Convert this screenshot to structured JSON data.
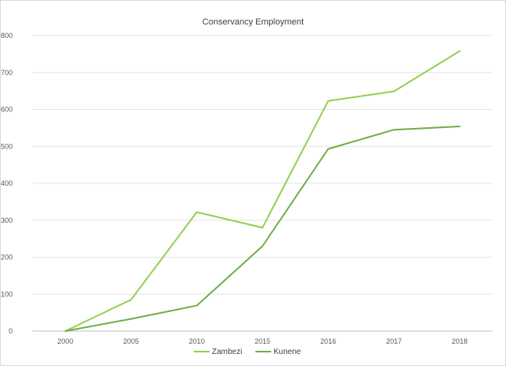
{
  "chart_data": {
    "type": "line",
    "title": "Conservancy Employment",
    "xlabel": "",
    "ylabel": "",
    "categories": [
      "2000",
      "2005",
      "2010",
      "2015",
      "2016",
      "2017",
      "2018"
    ],
    "ylim": [
      0,
      800
    ],
    "yticks": [
      0,
      100,
      200,
      300,
      400,
      500,
      600,
      700,
      800
    ],
    "grid": true,
    "legend_position": "bottom",
    "series": [
      {
        "name": "Zambezi",
        "color": "#92d050",
        "values": [
          0,
          85,
          322,
          280,
          623,
          649,
          758
        ]
      },
      {
        "name": "Kunene",
        "color": "#70ad47",
        "values": [
          0,
          33,
          69,
          230,
          493,
          545,
          554
        ]
      }
    ]
  }
}
